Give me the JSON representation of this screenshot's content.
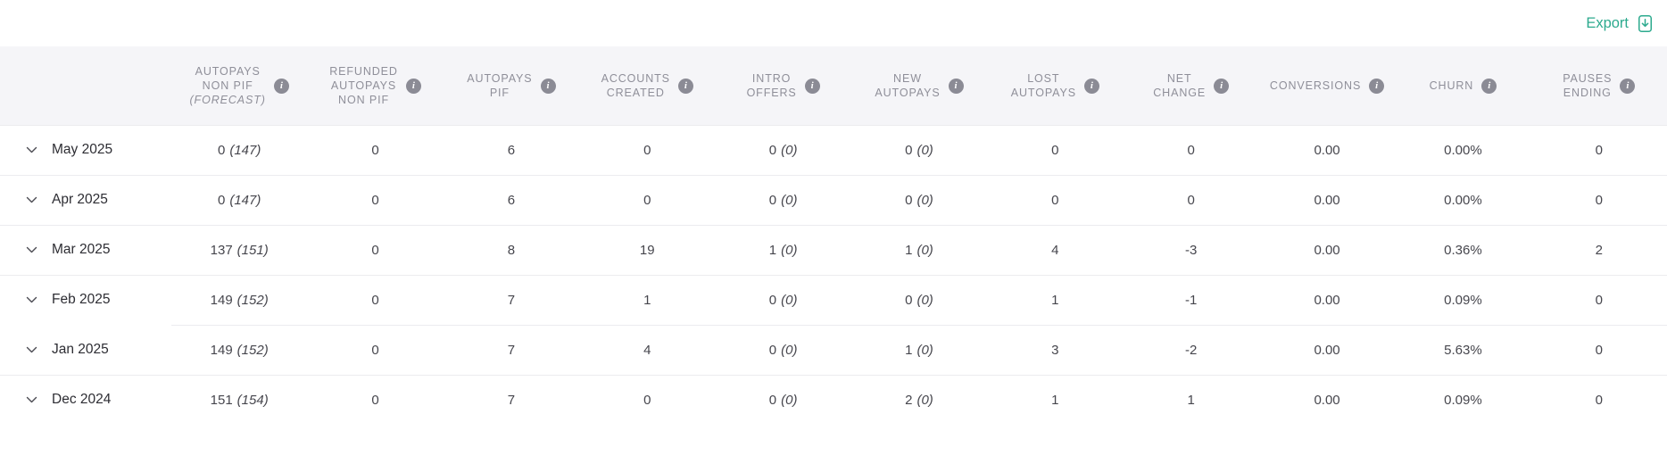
{
  "toolbar": {
    "export_label": "Export"
  },
  "colors": {
    "accent": "#2caa8e",
    "header_bg": "#f5f5f8",
    "header_text": "#8f8f99",
    "row_text": "#46464d",
    "divider": "#ececef"
  },
  "table": {
    "columns": [
      {
        "key": "autopays-non-pif-forecast",
        "label_lines": [
          "AUTOPAYS",
          "NON PIF"
        ],
        "sub": "(FORECAST)",
        "info_icon": true
      },
      {
        "key": "refunded-autopays-non-pif",
        "label_lines": [
          "REFUNDED",
          "AUTOPAYS",
          "NON PIF"
        ],
        "info_icon": true
      },
      {
        "key": "autopays-pif",
        "label_lines": [
          "AUTOPAYS",
          "PIF"
        ],
        "info_icon": true
      },
      {
        "key": "accounts-created",
        "label_lines": [
          "ACCOUNTS",
          "CREATED"
        ],
        "info_icon": true
      },
      {
        "key": "intro-offers",
        "label_lines": [
          "INTRO",
          "OFFERS"
        ],
        "info_icon": true
      },
      {
        "key": "new-autopays",
        "label_lines": [
          "NEW",
          "AUTOPAYS"
        ],
        "info_icon": true
      },
      {
        "key": "lost-autopays",
        "label_lines": [
          "LOST",
          "AUTOPAYS"
        ],
        "info_icon": true
      },
      {
        "key": "net-change",
        "label_lines": [
          "NET",
          "CHANGE"
        ],
        "info_icon": true
      },
      {
        "key": "conversions",
        "label_lines": [
          "CONVERSIONS"
        ],
        "info_icon": true
      },
      {
        "key": "churn",
        "label_lines": [
          "CHURN"
        ],
        "info_icon": true
      },
      {
        "key": "pauses-ending",
        "label_lines": [
          "PAUSES",
          "ENDING"
        ],
        "info_icon": true
      }
    ],
    "rows": [
      {
        "month": "May 2025",
        "cells": [
          {
            "main": "0",
            "forecast": "(147)"
          },
          {
            "main": "0"
          },
          {
            "main": "6"
          },
          {
            "main": "0"
          },
          {
            "main": "0",
            "forecast": "(0)"
          },
          {
            "main": "0",
            "forecast": "(0)"
          },
          {
            "main": "0"
          },
          {
            "main": "0"
          },
          {
            "main": "0.00"
          },
          {
            "main": "0.00%"
          },
          {
            "main": "0"
          }
        ]
      },
      {
        "month": "Apr 2025",
        "cells": [
          {
            "main": "0",
            "forecast": "(147)"
          },
          {
            "main": "0"
          },
          {
            "main": "6"
          },
          {
            "main": "0"
          },
          {
            "main": "0",
            "forecast": "(0)"
          },
          {
            "main": "0",
            "forecast": "(0)"
          },
          {
            "main": "0"
          },
          {
            "main": "0"
          },
          {
            "main": "0.00"
          },
          {
            "main": "0.00%"
          },
          {
            "main": "0"
          }
        ]
      },
      {
        "month": "Mar 2025",
        "cells": [
          {
            "main": "137",
            "forecast": "(151)"
          },
          {
            "main": "0"
          },
          {
            "main": "8"
          },
          {
            "main": "19"
          },
          {
            "main": "1",
            "forecast": "(0)"
          },
          {
            "main": "1",
            "forecast": "(0)"
          },
          {
            "main": "4"
          },
          {
            "main": "-3"
          },
          {
            "main": "0.00"
          },
          {
            "main": "0.36%"
          },
          {
            "main": "2"
          }
        ]
      },
      {
        "month": "Feb 2025",
        "cells": [
          {
            "main": "149",
            "forecast": "(152)"
          },
          {
            "main": "0"
          },
          {
            "main": "7"
          },
          {
            "main": "1"
          },
          {
            "main": "0",
            "forecast": "(0)"
          },
          {
            "main": "0",
            "forecast": "(0)"
          },
          {
            "main": "1"
          },
          {
            "main": "-1"
          },
          {
            "main": "0.00"
          },
          {
            "main": "0.09%"
          },
          {
            "main": "0"
          }
        ]
      },
      {
        "month": "Jan 2025",
        "cells": [
          {
            "main": "149",
            "forecast": "(152)"
          },
          {
            "main": "0"
          },
          {
            "main": "7"
          },
          {
            "main": "4"
          },
          {
            "main": "0",
            "forecast": "(0)"
          },
          {
            "main": "1",
            "forecast": "(0)"
          },
          {
            "main": "3"
          },
          {
            "main": "-2"
          },
          {
            "main": "0.00"
          },
          {
            "main": "5.63%"
          },
          {
            "main": "0"
          }
        ]
      },
      {
        "month": "Dec 2024",
        "cells": [
          {
            "main": "151",
            "forecast": "(154)"
          },
          {
            "main": "0"
          },
          {
            "main": "7"
          },
          {
            "main": "0"
          },
          {
            "main": "0",
            "forecast": "(0)"
          },
          {
            "main": "2",
            "forecast": "(0)"
          },
          {
            "main": "1"
          },
          {
            "main": "1"
          },
          {
            "main": "0.00"
          },
          {
            "main": "0.09%"
          },
          {
            "main": "0"
          }
        ]
      }
    ]
  }
}
